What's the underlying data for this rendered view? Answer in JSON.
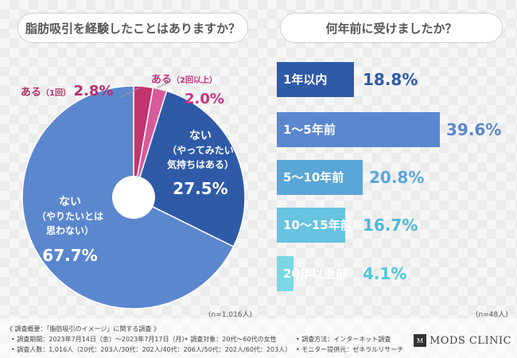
{
  "chart_data": [
    {
      "type": "pie",
      "title": "脂肪吸引を経験したことはありますか？",
      "slices": [
        {
          "line1": "ある",
          "line2": "（1回）",
          "line3": "",
          "pct_label": "2.8%",
          "value": 2.8,
          "color": "#c2346e",
          "text_color": "#b5306a"
        },
        {
          "line1": "ある",
          "line2": "（2回以上）",
          "line3": "",
          "pct_label": "2.0%",
          "value": 2.0,
          "color": "#d85a9a",
          "text_color": "#c2347e"
        },
        {
          "line1": "ない",
          "line2": "（やってみたい",
          "line3": "気持ちはある）",
          "pct_label": "27.5%",
          "value": 27.5,
          "color": "#2f5aa8",
          "text_color": "#ffffff"
        },
        {
          "line1": "ない",
          "line2": "（やりたいとは",
          "line3": "思わない）",
          "pct_label": "67.7%",
          "value": 67.7,
          "color": "#5b87cf",
          "text_color": "#ffffff"
        }
      ],
      "n_note": "(n=1,016人)"
    },
    {
      "type": "bar",
      "title": "何年前に受けましたか？",
      "categories": [
        "1年以内",
        "1〜5年前",
        "5〜10年前",
        "10〜15年前",
        "20年以上前"
      ],
      "values": [
        18.8,
        39.6,
        20.8,
        16.7,
        4.1
      ],
      "pct_labels": [
        "18.8%",
        "39.6%",
        "20.8%",
        "16.7%",
        "4.1%"
      ],
      "colors": [
        "#2f5aa8",
        "#5b87cf",
        "#5aa6d8",
        "#67c3e0",
        "#79d8e4"
      ],
      "label_colors": [
        "#2f5aa8",
        "#5b87cf",
        "#5aa6d8",
        "#4cb8d8",
        "#4cc8d8"
      ],
      "n_note": "(n=48人)"
    }
  ],
  "footer": {
    "survey_title": "《 調査概要：「脂肪吸引のイメージ」に関する調査 》",
    "period": "調査期間：2023年7月14日（金）〜2023年7月17日（月）",
    "target": "調査対象：20代〜60代の女性",
    "method": "調査方法：インターネット調査",
    "people": "調査人数：1,016人（20代：203人/30代：202人/40代：206人/50代：202人/60代：203人）",
    "provider": "モニター提供元：ゼネラルリサーチ",
    "logo_mark": "M",
    "logo_text": "MODS CLINIC"
  }
}
